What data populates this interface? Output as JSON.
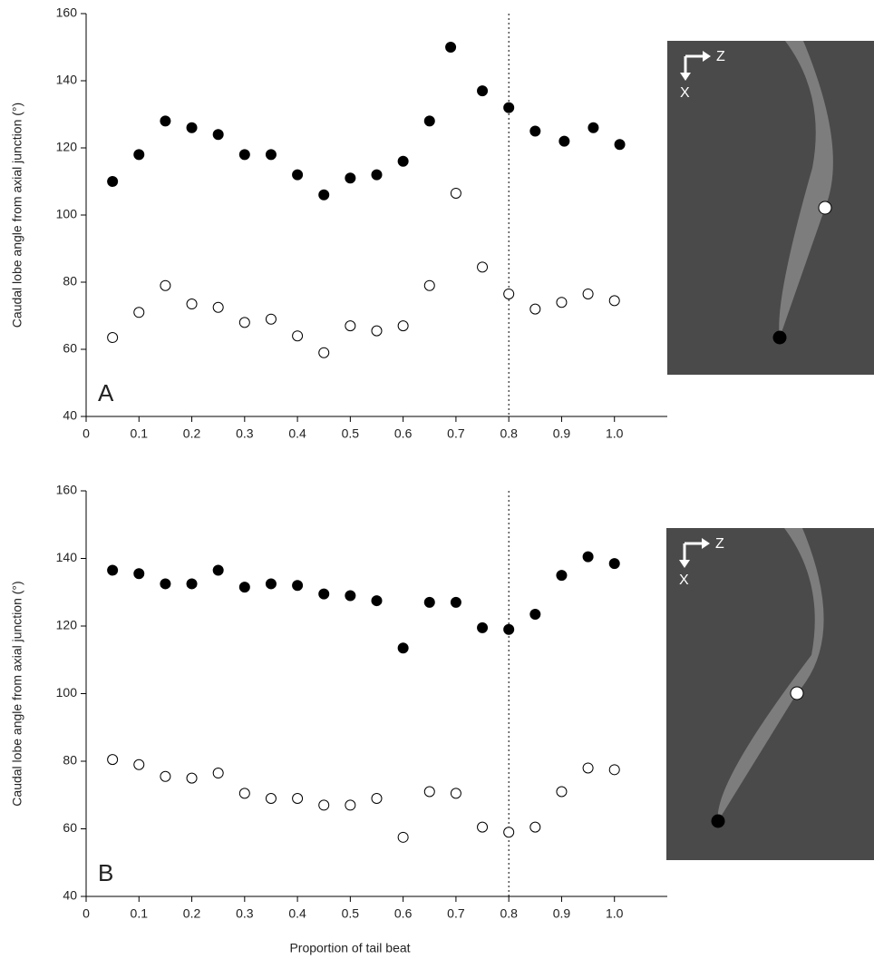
{
  "chart_data": [
    {
      "type": "scatter",
      "annotation": "A",
      "ylabel": "Caudal lobe angle from axial junction (°)",
      "xlim": [
        0,
        1.1
      ],
      "ylim": [
        40,
        160
      ],
      "xticks": [
        0,
        0.1,
        0.2,
        0.3,
        0.4,
        0.5,
        0.6,
        0.7,
        0.8,
        0.9,
        {
          "value": 1,
          "label": "1.0"
        }
      ],
      "yticks": [
        40,
        60,
        80,
        100,
        120,
        140,
        160
      ],
      "vline": 0.8,
      "series": [
        {
          "color": "#000000",
          "marker": "filled",
          "x": [
            0.05,
            0.1,
            0.15,
            0.2,
            0.25,
            0.3,
            0.35,
            0.4,
            0.45,
            0.5,
            0.55,
            0.6,
            0.65,
            0.69,
            0.75,
            0.8,
            0.85,
            0.905,
            0.96,
            1.01
          ],
          "values": [
            110,
            118,
            128,
            126,
            124,
            118,
            118,
            112,
            106,
            111,
            112,
            116,
            128,
            150,
            137,
            132,
            125,
            122,
            126,
            121
          ]
        },
        {
          "color": "#000000",
          "marker": "open",
          "x": [
            0.05,
            0.1,
            0.15,
            0.2,
            0.25,
            0.3,
            0.35,
            0.4,
            0.45,
            0.5,
            0.55,
            0.6,
            0.65,
            0.7,
            0.75,
            0.8,
            0.85,
            0.9,
            0.95,
            1.0
          ],
          "values": [
            63.5,
            71,
            79,
            73.5,
            72.5,
            68,
            69,
            64,
            59,
            67,
            65.5,
            67,
            79,
            106.5,
            84.5,
            76.5,
            72,
            74,
            76.5,
            74.5
          ]
        }
      ],
      "inset": {
        "axis_labels": [
          "Z",
          "X"
        ]
      }
    },
    {
      "type": "scatter",
      "annotation": "B",
      "ylabel": "Caudal lobe angle from axial junction (°)",
      "xlabel": "Proportion of tail beat",
      "xlim": [
        0,
        1.1
      ],
      "ylim": [
        40,
        160
      ],
      "xticks": [
        0,
        0.1,
        0.2,
        0.3,
        0.4,
        0.5,
        0.6,
        0.7,
        0.8,
        0.9,
        {
          "value": 1,
          "label": "1.0"
        }
      ],
      "yticks": [
        40,
        60,
        80,
        100,
        120,
        140,
        160
      ],
      "vline": 0.8,
      "series": [
        {
          "color": "#000000",
          "marker": "filled",
          "x": [
            0.05,
            0.1,
            0.15,
            0.2,
            0.25,
            0.3,
            0.35,
            0.4,
            0.45,
            0.5,
            0.55,
            0.6,
            0.65,
            0.7,
            0.75,
            0.8,
            0.85,
            0.9,
            0.95,
            1.0
          ],
          "values": [
            136.5,
            135.5,
            132.5,
            132.5,
            136.5,
            131.5,
            132.5,
            132,
            129.5,
            129,
            127.5,
            113.5,
            127,
            127,
            119.5,
            119,
            123.5,
            135,
            140.5,
            138.5
          ]
        },
        {
          "color": "#000000",
          "marker": "open",
          "x": [
            0.05,
            0.1,
            0.15,
            0.2,
            0.25,
            0.3,
            0.35,
            0.4,
            0.45,
            0.5,
            0.55,
            0.6,
            0.65,
            0.7,
            0.75,
            0.8,
            0.85,
            0.9,
            0.95,
            1.0
          ],
          "values": [
            80.5,
            79,
            75.5,
            75,
            76.5,
            70.5,
            69,
            69,
            67,
            67,
            69,
            57.5,
            71,
            70.5,
            60.5,
            59,
            60.5,
            71,
            78,
            77.5
          ]
        }
      ],
      "inset": {
        "axis_labels": [
          "Z",
          "X"
        ]
      }
    }
  ]
}
